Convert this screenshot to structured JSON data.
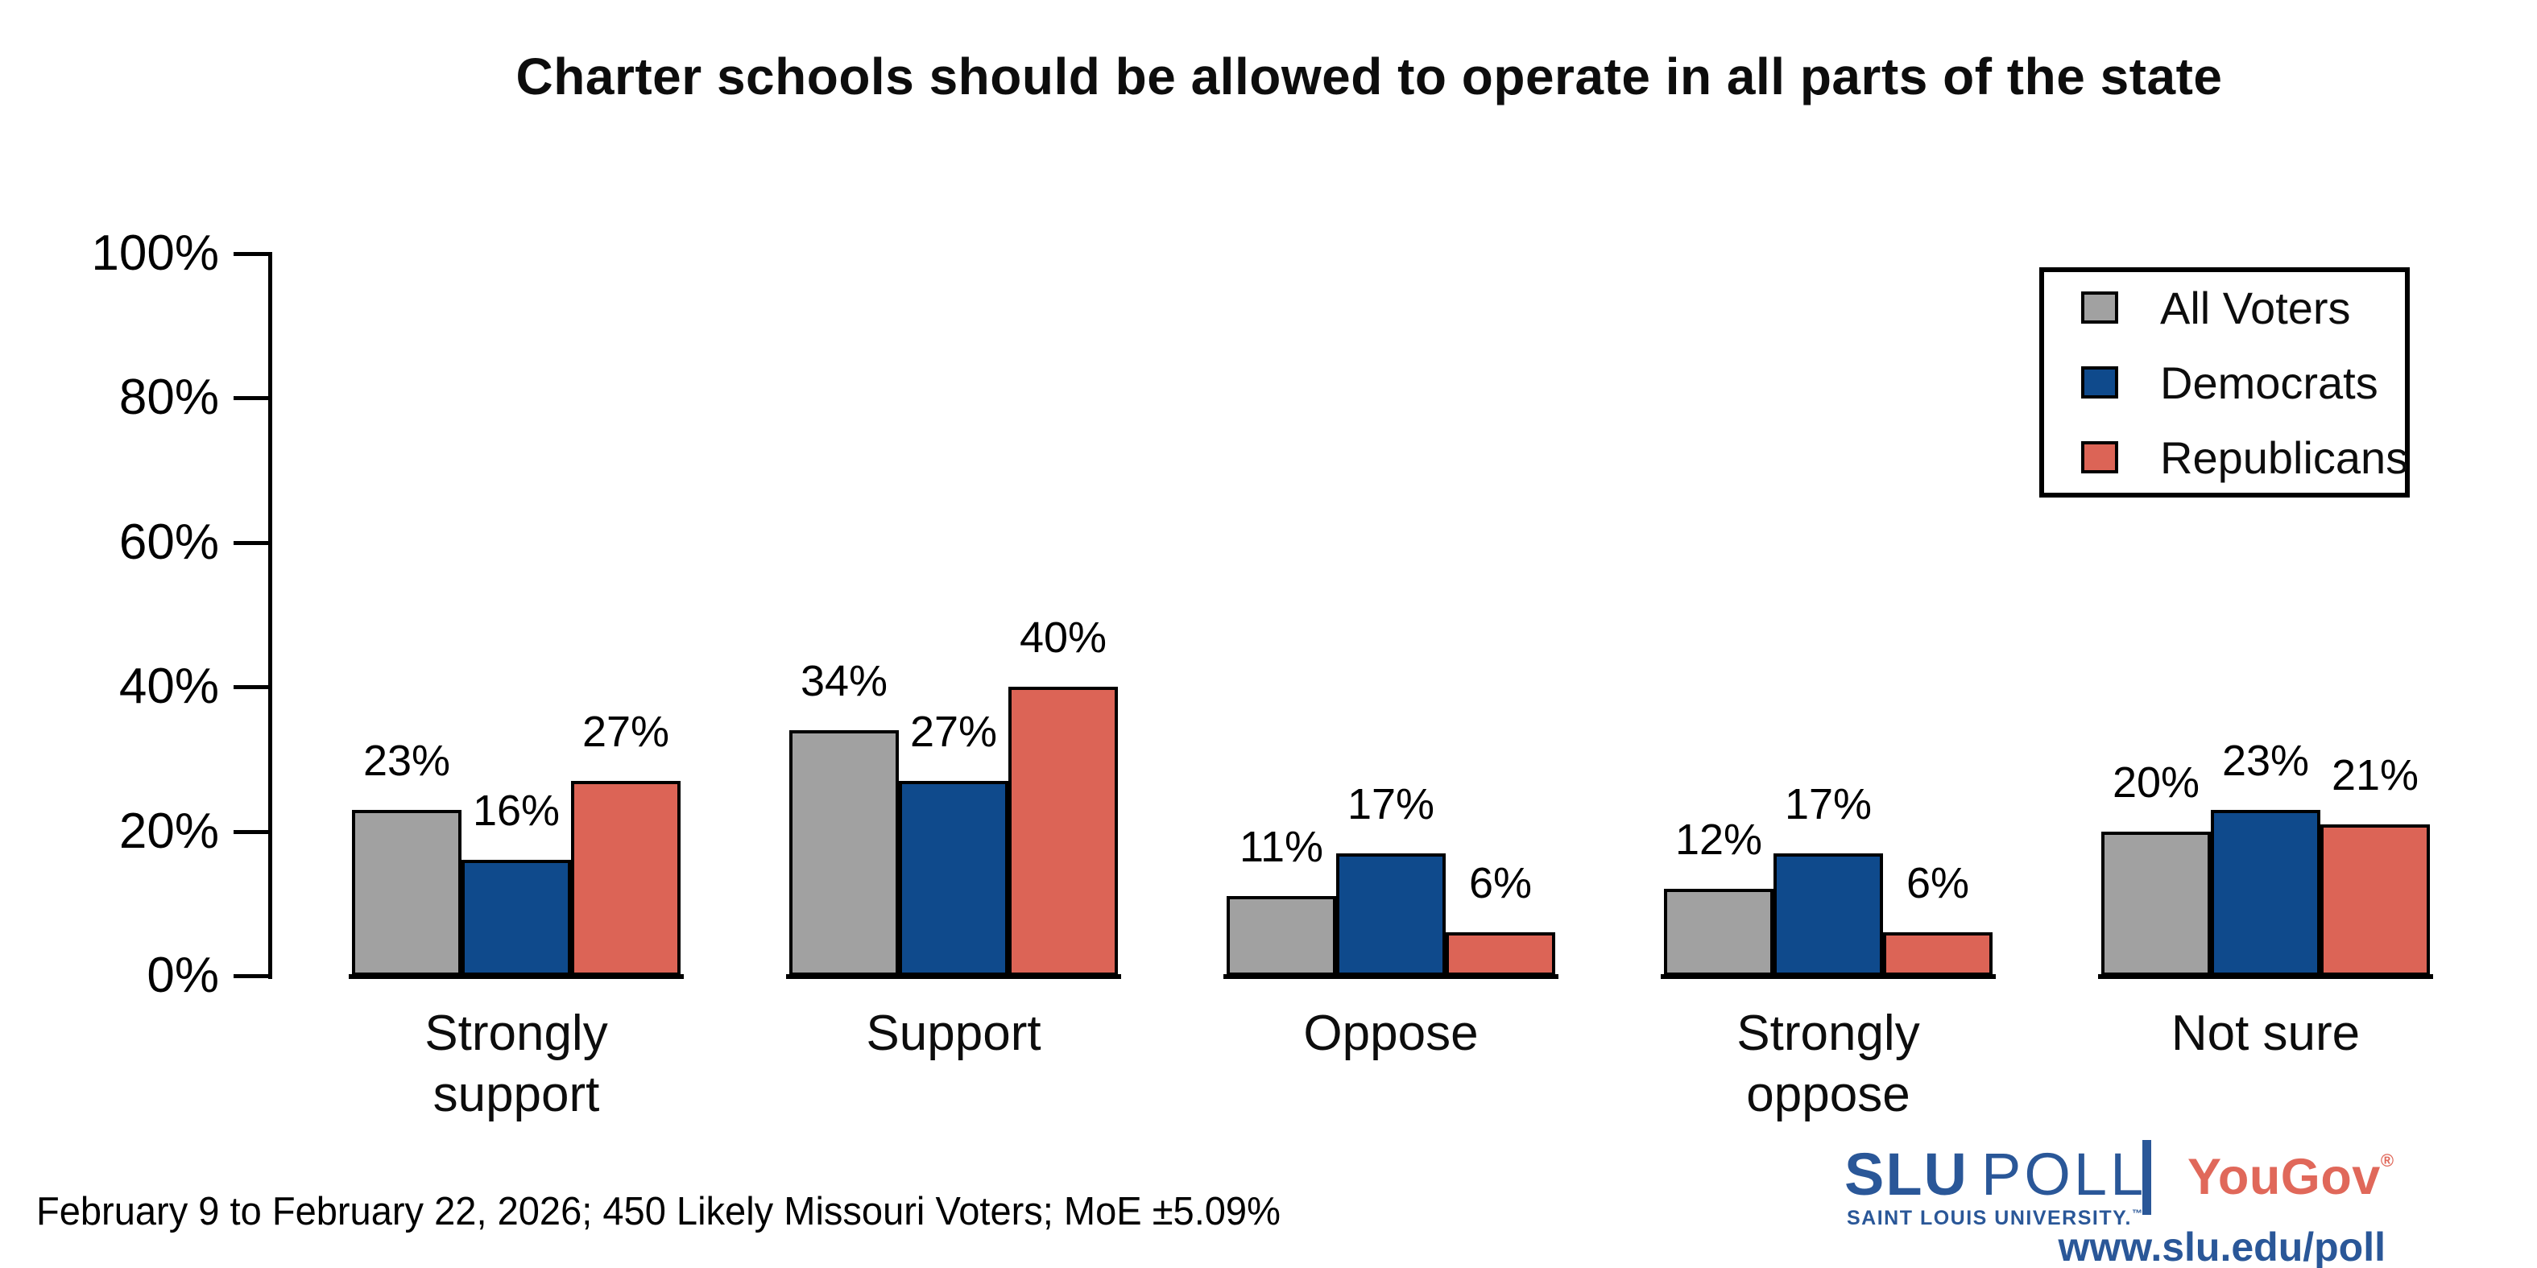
{
  "chart_data": {
    "type": "bar",
    "title": "Charter schools should be allowed to operate in all parts of the state",
    "categories": [
      "Strongly support",
      "Support",
      "Oppose",
      "Strongly oppose",
      "Not sure"
    ],
    "series": [
      {
        "name": "All Voters",
        "color": "#a1a1a1",
        "values": [
          23,
          34,
          11,
          12,
          20
        ]
      },
      {
        "name": "Democrats",
        "color": "#0f4a8c",
        "values": [
          16,
          27,
          17,
          17,
          23
        ]
      },
      {
        "name": "Republicans",
        "color": "#dc6456",
        "values": [
          27,
          40,
          6,
          6,
          21
        ]
      }
    ],
    "value_suffix": "%",
    "xlabel": "",
    "ylabel": "",
    "ylim": [
      0,
      100
    ],
    "yticks": [
      "0%",
      "20%",
      "40%",
      "60%",
      "80%",
      "100%"
    ],
    "grid": false,
    "legend_position": "top-right",
    "bar_outline_color": "#000000"
  },
  "footer": {
    "note": "February 9 to February 22, 2026; 450 Likely Missouri Voters; MoE ±5.09%"
  },
  "branding": {
    "slu": "SLU",
    "poll": "POLL",
    "university": "SAINT LOUIS UNIVERSITY.",
    "trademark": "™",
    "yougov": "YouGov",
    "registered": "®",
    "url": "www.slu.edu/poll",
    "slu_blue": "#2a5798",
    "yougov_red": "#e0685a"
  }
}
